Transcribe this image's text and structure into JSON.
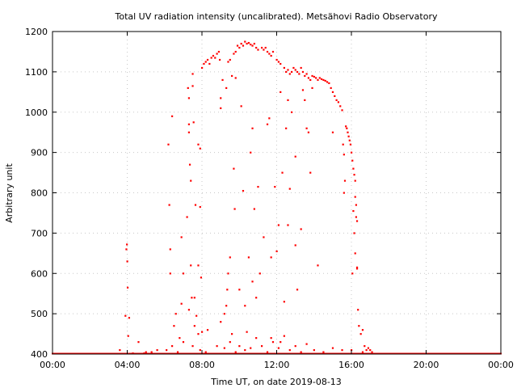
{
  "chart_data": {
    "type": "scatter",
    "title": "Total UV radiation intensity (uncalibrated). Metsähovi Radio Observatory",
    "xlabel": "Time UT, on date 2019-08-13",
    "ylabel": "Arbitrary unit",
    "xlim": [
      0,
      24
    ],
    "ylim": [
      400,
      1200
    ],
    "x_ticks": [
      {
        "value": 0,
        "label": "00:00"
      },
      {
        "value": 4,
        "label": "04:00"
      },
      {
        "value": 8,
        "label": "08:00"
      },
      {
        "value": 12,
        "label": "12:00"
      },
      {
        "value": 16,
        "label": "16:00"
      },
      {
        "value": 20,
        "label": "20:00"
      },
      {
        "value": 24,
        "label": "00:00"
      }
    ],
    "y_ticks": [
      {
        "value": 400,
        "label": "400"
      },
      {
        "value": 500,
        "label": "500"
      },
      {
        "value": 600,
        "label": "600"
      },
      {
        "value": 700,
        "label": "700"
      },
      {
        "value": 800,
        "label": "800"
      },
      {
        "value": 900,
        "label": "900"
      },
      {
        "value": 1000,
        "label": "1000"
      },
      {
        "value": 1100,
        "label": "1100"
      },
      {
        "value": 1200,
        "label": "1200"
      }
    ],
    "grid": true,
    "series_color": "#ff0000",
    "baseline": {
      "x_start": 0,
      "x_end": 24,
      "y": 400
    },
    "points": [
      [
        3.9,
        495
      ],
      [
        3.95,
        660
      ],
      [
        3.98,
        672
      ],
      [
        4.0,
        630
      ],
      [
        4.02,
        565
      ],
      [
        4.05,
        445
      ],
      [
        4.1,
        490
      ],
      [
        4.6,
        430
      ],
      [
        4.9,
        402
      ],
      [
        5.3,
        405
      ],
      [
        6.2,
        920
      ],
      [
        6.25,
        770
      ],
      [
        6.3,
        660
      ],
      [
        6.3,
        600
      ],
      [
        6.4,
        990
      ],
      [
        6.5,
        470
      ],
      [
        6.6,
        500
      ],
      [
        6.8,
        440
      ],
      [
        6.9,
        690
      ],
      [
        7.0,
        600
      ],
      [
        7.2,
        740
      ],
      [
        7.25,
        1060
      ],
      [
        7.3,
        1035
      ],
      [
        7.3,
        970
      ],
      [
        7.3,
        950
      ],
      [
        7.35,
        870
      ],
      [
        7.4,
        830
      ],
      [
        7.4,
        620
      ],
      [
        7.45,
        540
      ],
      [
        7.5,
        1065
      ],
      [
        7.5,
        1095
      ],
      [
        7.55,
        975
      ],
      [
        7.6,
        540
      ],
      [
        7.65,
        770
      ],
      [
        7.7,
        495
      ],
      [
        7.8,
        920
      ],
      [
        7.9,
        910
      ],
      [
        7.9,
        765
      ],
      [
        7.8,
        620
      ],
      [
        7.95,
        590
      ],
      [
        8.0,
        1110
      ],
      [
        8.1,
        1120
      ],
      [
        8.2,
        1125
      ],
      [
        8.3,
        1130
      ],
      [
        8.4,
        1120
      ],
      [
        8.5,
        1135
      ],
      [
        8.6,
        1140
      ],
      [
        8.7,
        1135
      ],
      [
        8.8,
        1145
      ],
      [
        8.9,
        1150
      ],
      [
        8.95,
        1130
      ],
      [
        9.0,
        1035
      ],
      [
        9.0,
        1010
      ],
      [
        9.1,
        1080
      ],
      [
        9.3,
        1060
      ],
      [
        9.4,
        1125
      ],
      [
        9.5,
        1130
      ],
      [
        9.6,
        1090
      ],
      [
        9.7,
        1145
      ],
      [
        9.8,
        1150
      ],
      [
        9.3,
        520
      ],
      [
        9.35,
        560
      ],
      [
        9.4,
        600
      ],
      [
        9.5,
        640
      ],
      [
        9.6,
        450
      ],
      [
        9.7,
        860
      ],
      [
        9.75,
        760
      ],
      [
        9.8,
        1085
      ],
      [
        9.9,
        1165
      ],
      [
        10.0,
        1160
      ],
      [
        10.1,
        1170
      ],
      [
        10.2,
        1165
      ],
      [
        10.3,
        1175
      ],
      [
        10.4,
        1170
      ],
      [
        10.5,
        1172
      ],
      [
        10.6,
        1168
      ],
      [
        10.7,
        1165
      ],
      [
        10.8,
        1170
      ],
      [
        10.9,
        1160
      ],
      [
        11.0,
        1155
      ],
      [
        10.1,
        1015
      ],
      [
        10.2,
        805
      ],
      [
        10.4,
        455
      ],
      [
        10.5,
        640
      ],
      [
        10.6,
        900
      ],
      [
        10.7,
        960
      ],
      [
        10.8,
        760
      ],
      [
        10.9,
        540
      ],
      [
        11.0,
        815
      ],
      [
        11.1,
        600
      ],
      [
        11.2,
        1160
      ],
      [
        11.3,
        1155
      ],
      [
        11.4,
        1160
      ],
      [
        11.5,
        1150
      ],
      [
        11.6,
        1145
      ],
      [
        11.7,
        1140
      ],
      [
        11.8,
        1150
      ],
      [
        12.0,
        1130
      ],
      [
        12.1,
        1125
      ],
      [
        12.2,
        1120
      ],
      [
        11.5,
        970
      ],
      [
        11.6,
        985
      ],
      [
        11.7,
        440
      ],
      [
        11.9,
        815
      ],
      [
        12.0,
        655
      ],
      [
        12.1,
        720
      ],
      [
        12.2,
        1050
      ],
      [
        12.3,
        850
      ],
      [
        12.4,
        530
      ],
      [
        12.5,
        960
      ],
      [
        12.4,
        1110
      ],
      [
        12.5,
        1100
      ],
      [
        12.6,
        1105
      ],
      [
        12.7,
        1095
      ],
      [
        12.8,
        1100
      ],
      [
        12.9,
        1110
      ],
      [
        13.0,
        1105
      ],
      [
        13.1,
        1100
      ],
      [
        13.2,
        1095
      ],
      [
        13.3,
        1110
      ],
      [
        12.6,
        1030
      ],
      [
        12.7,
        810
      ],
      [
        12.8,
        1000
      ],
      [
        13.0,
        890
      ],
      [
        13.0,
        670
      ],
      [
        13.3,
        710
      ],
      [
        13.4,
        1055
      ],
      [
        13.5,
        1030
      ],
      [
        13.6,
        960
      ],
      [
        13.7,
        950
      ],
      [
        13.4,
        1100
      ],
      [
        13.5,
        1090
      ],
      [
        13.6,
        1095
      ],
      [
        13.7,
        1085
      ],
      [
        13.8,
        1080
      ],
      [
        13.9,
        1090
      ],
      [
        14.0,
        1088
      ],
      [
        14.1,
        1085
      ],
      [
        14.2,
        1080
      ],
      [
        14.3,
        1085
      ],
      [
        14.4,
        1082
      ],
      [
        14.5,
        1080
      ],
      [
        14.6,
        1078
      ],
      [
        14.7,
        1075
      ],
      [
        14.8,
        1072
      ],
      [
        14.9,
        1060
      ],
      [
        15.0,
        1050
      ],
      [
        15.1,
        1040
      ],
      [
        15.2,
        1030
      ],
      [
        15.3,
        1025
      ],
      [
        14.2,
        620
      ],
      [
        13.8,
        850
      ],
      [
        13.9,
        1060
      ],
      [
        15.0,
        950
      ],
      [
        15.4,
        1015
      ],
      [
        15.5,
        1005
      ],
      [
        15.55,
        920
      ],
      [
        15.6,
        895
      ],
      [
        15.65,
        830
      ],
      [
        15.7,
        965
      ],
      [
        15.75,
        960
      ],
      [
        15.8,
        950
      ],
      [
        15.85,
        940
      ],
      [
        15.9,
        930
      ],
      [
        15.95,
        920
      ],
      [
        16.0,
        900
      ],
      [
        16.05,
        880
      ],
      [
        16.1,
        860
      ],
      [
        16.15,
        845
      ],
      [
        16.2,
        830
      ],
      [
        16.2,
        790
      ],
      [
        16.25,
        770
      ],
      [
        16.25,
        740
      ],
      [
        16.3,
        730
      ],
      [
        16.3,
        615
      ],
      [
        16.35,
        510
      ],
      [
        16.4,
        470
      ],
      [
        16.5,
        450
      ],
      [
        16.6,
        460
      ],
      [
        16.7,
        420
      ],
      [
        16.8,
        410
      ],
      [
        16.9,
        415
      ],
      [
        17.0,
        410
      ],
      [
        17.1,
        405
      ],
      [
        15.6,
        800
      ],
      [
        16.1,
        755
      ],
      [
        16.05,
        600
      ],
      [
        16.15,
        700
      ],
      [
        16.2,
        650
      ],
      [
        16.3,
        612
      ],
      [
        6.1,
        410
      ],
      [
        6.4,
        420
      ],
      [
        6.7,
        405
      ],
      [
        7.0,
        430
      ],
      [
        7.5,
        420
      ],
      [
        7.9,
        410
      ],
      [
        8.2,
        405
      ],
      [
        8.8,
        420
      ],
      [
        9.2,
        415
      ],
      [
        9.5,
        430
      ],
      [
        9.8,
        405
      ],
      [
        10.0,
        420
      ],
      [
        10.3,
        410
      ],
      [
        10.6,
        415
      ],
      [
        10.9,
        440
      ],
      [
        11.2,
        420
      ],
      [
        11.5,
        405
      ],
      [
        11.8,
        430
      ],
      [
        12.1,
        415
      ],
      [
        12.4,
        445
      ],
      [
        12.7,
        410
      ],
      [
        13.0,
        420
      ],
      [
        13.3,
        405
      ],
      [
        13.6,
        425
      ],
      [
        14.0,
        410
      ],
      [
        14.5,
        405
      ],
      [
        15.0,
        415
      ],
      [
        15.5,
        410
      ],
      [
        16.0,
        410
      ],
      [
        16.6,
        405
      ],
      [
        5.0,
        405
      ],
      [
        5.6,
        410
      ],
      [
        3.6,
        410
      ],
      [
        4.3,
        402
      ],
      [
        7.8,
        450
      ],
      [
        8.0,
        455
      ],
      [
        8.3,
        460
      ],
      [
        9.0,
        480
      ],
      [
        9.2,
        500
      ],
      [
        10.0,
        560
      ],
      [
        10.3,
        520
      ],
      [
        10.7,
        580
      ],
      [
        11.3,
        690
      ],
      [
        11.7,
        640
      ],
      [
        12.2,
        430
      ],
      [
        12.6,
        720
      ],
      [
        13.1,
        560
      ],
      [
        6.9,
        525
      ],
      [
        7.3,
        510
      ],
      [
        7.6,
        470
      ]
    ]
  }
}
